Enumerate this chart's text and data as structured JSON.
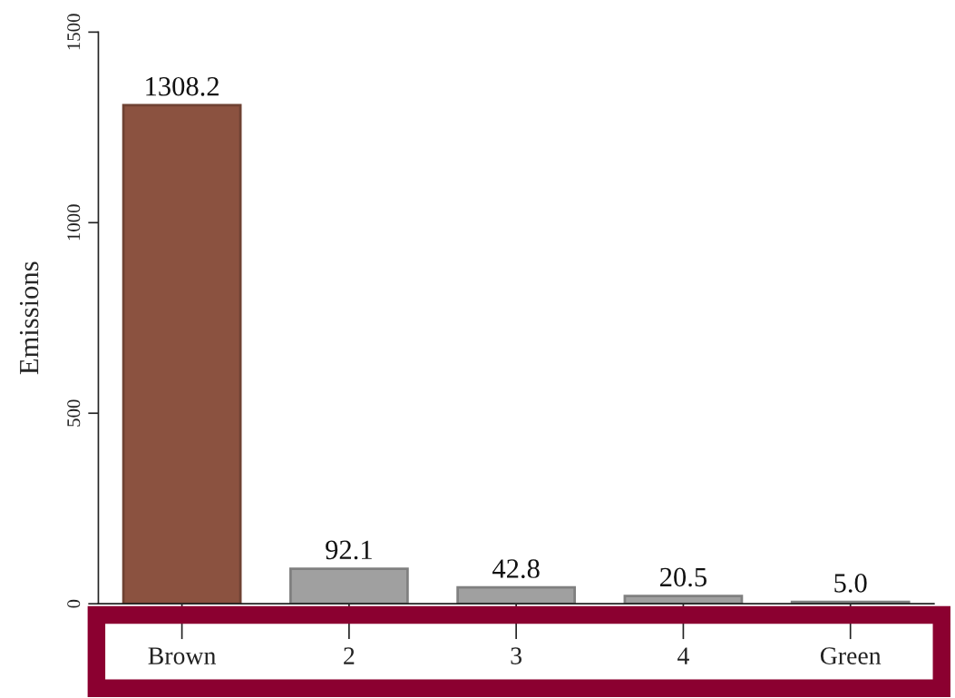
{
  "chart_data": {
    "type": "bar",
    "ylabel": "Emissions",
    "categories": [
      "Brown",
      "2",
      "3",
      "4",
      "Green"
    ],
    "values": [
      1308.2,
      92.1,
      42.8,
      20.5,
      5.0
    ],
    "value_labels": [
      "1308.2",
      "92.1",
      "42.8",
      "20.5",
      "5.0"
    ],
    "colors": [
      "#8b5240",
      "#a0a0a0",
      "#a0a0a0",
      "#a0a0a0",
      "#a0a0a0"
    ],
    "ylim": [
      0,
      1500
    ],
    "yticks": [
      0,
      500,
      1000,
      1500
    ],
    "grid": false,
    "legend": false
  }
}
